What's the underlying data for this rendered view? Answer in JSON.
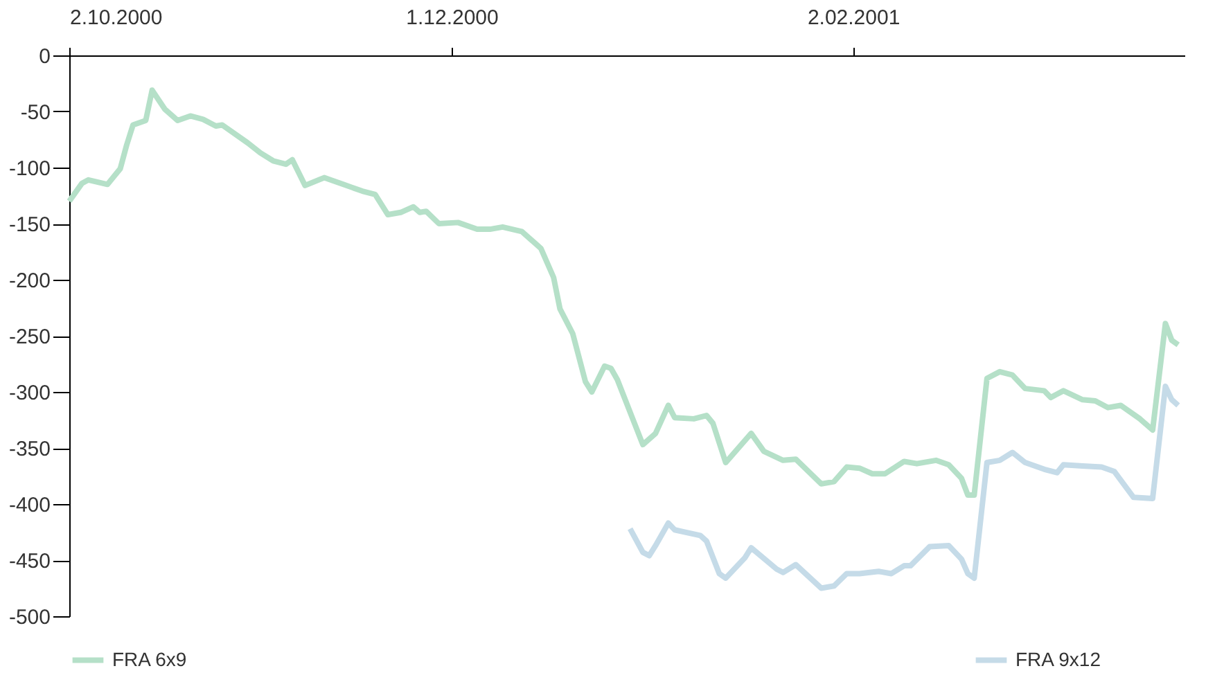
{
  "chart_data": {
    "type": "line",
    "xlim": [
      "2000-10-02",
      "2001-03-26"
    ],
    "xticks": [
      {
        "value": "2000-10-02",
        "label": "2.10.2000"
      },
      {
        "value": "2000-12-01",
        "label": "1.12.2000"
      },
      {
        "value": "2001-02-02",
        "label": "2.02.2001"
      }
    ],
    "ylim": [
      -500,
      0
    ],
    "yticks": [
      0,
      -50,
      -100,
      -150,
      -200,
      -250,
      -300,
      -350,
      -400,
      -450,
      -500
    ],
    "grid": false,
    "legend": "bottom",
    "line_style": "solid",
    "marker": "none",
    "series": [
      {
        "name": "FRA 6x9",
        "color": "#b5e0c8",
        "x": [
          "2000-10-02",
          "2000-10-04",
          "2000-10-05",
          "2000-10-08",
          "2000-10-10",
          "2000-10-11",
          "2000-10-12",
          "2000-10-14",
          "2000-10-15",
          "2000-10-17",
          "2000-10-19",
          "2000-10-21",
          "2000-10-23",
          "2000-10-25",
          "2000-10-26",
          "2000-10-30",
          "2000-11-01",
          "2000-11-03",
          "2000-11-05",
          "2000-11-06",
          "2000-11-08",
          "2000-11-11",
          "2000-11-14",
          "2000-11-17",
          "2000-11-19",
          "2000-11-21",
          "2000-11-23",
          "2000-11-25",
          "2000-11-26",
          "2000-11-27",
          "2000-11-29",
          "2000-12-02",
          "2000-12-05",
          "2000-12-07",
          "2000-12-09",
          "2000-12-12",
          "2000-12-14",
          "2000-12-15",
          "2000-12-17",
          "2000-12-18",
          "2000-12-20",
          "2000-12-22",
          "2000-12-23",
          "2000-12-25",
          "2000-12-26",
          "2000-12-27",
          "2000-12-31",
          "2001-01-02",
          "2001-01-04",
          "2001-01-05",
          "2001-01-08",
          "2001-01-10",
          "2001-01-11",
          "2001-01-13",
          "2001-01-17",
          "2001-01-19",
          "2001-01-22",
          "2001-01-24",
          "2001-01-28",
          "2001-01-30",
          "2001-02-01",
          "2001-02-03",
          "2001-02-05",
          "2001-02-07",
          "2001-02-10",
          "2001-02-12",
          "2001-02-15",
          "2001-02-17",
          "2001-02-19",
          "2001-02-20",
          "2001-02-21",
          "2001-02-23",
          "2001-02-25",
          "2001-02-27",
          "2001-03-01",
          "2001-03-04",
          "2001-03-05",
          "2001-03-07",
          "2001-03-10",
          "2001-03-12",
          "2001-03-14",
          "2001-03-16",
          "2001-03-19",
          "2001-03-21",
          "2001-03-23",
          "2001-03-24",
          "2001-03-25"
        ],
        "values": [
          -130,
          -114,
          -111,
          -115,
          -101,
          -80,
          -62,
          -58,
          -31,
          -48,
          -58,
          -54,
          -57,
          -63,
          -62,
          -78,
          -87,
          -94,
          -97,
          -93,
          -116,
          -109,
          -115,
          -121,
          -124,
          -142,
          -140,
          -135,
          -140,
          -139,
          -150,
          -149,
          -155,
          -155,
          -153,
          -157,
          -167,
          -172,
          -198,
          -226,
          -248,
          -291,
          -300,
          -277,
          -279,
          -289,
          -347,
          -337,
          -312,
          -323,
          -324,
          -321,
          -328,
          -363,
          -337,
          -353,
          -361,
          -360,
          -382,
          -380,
          -367,
          -368,
          -373,
          -373,
          -362,
          -364,
          -361,
          -365,
          -377,
          -392,
          -392,
          -288,
          -282,
          -285,
          -297,
          -299,
          -305,
          -299,
          -307,
          -308,
          -314,
          -312,
          -324,
          -334,
          -239,
          -254,
          -258
        ]
      },
      {
        "name": "FRA 9x12",
        "color": "#c5dbe8",
        "x": [
          "2000-12-29",
          "2000-12-31",
          "2001-01-01",
          "2001-01-02",
          "2001-01-04",
          "2001-01-05",
          "2001-01-09",
          "2001-01-10",
          "2001-01-12",
          "2001-01-13",
          "2001-01-16",
          "2001-01-17",
          "2001-01-21",
          "2001-01-22",
          "2001-01-24",
          "2001-01-28",
          "2001-01-30",
          "2001-02-01",
          "2001-02-03",
          "2001-02-06",
          "2001-02-08",
          "2001-02-10",
          "2001-02-11",
          "2001-02-14",
          "2001-02-17",
          "2001-02-19",
          "2001-02-20",
          "2001-02-21",
          "2001-02-23",
          "2001-02-25",
          "2001-02-27",
          "2001-03-01",
          "2001-03-04",
          "2001-03-06",
          "2001-03-07",
          "2001-03-10",
          "2001-03-13",
          "2001-03-15",
          "2001-03-18",
          "2001-03-21",
          "2001-03-23",
          "2001-03-24",
          "2001-03-25"
        ],
        "values": [
          -422,
          -443,
          -446,
          -437,
          -417,
          -423,
          -428,
          -433,
          -462,
          -466,
          -448,
          -439,
          -458,
          -461,
          -454,
          -475,
          -473,
          -462,
          -462,
          -460,
          -462,
          -455,
          -455,
          -438,
          -437,
          -449,
          -462,
          -466,
          -363,
          -361,
          -354,
          -363,
          -369,
          -372,
          -365,
          -366,
          -367,
          -371,
          -394,
          -395,
          -295,
          -307,
          -312
        ]
      }
    ]
  }
}
